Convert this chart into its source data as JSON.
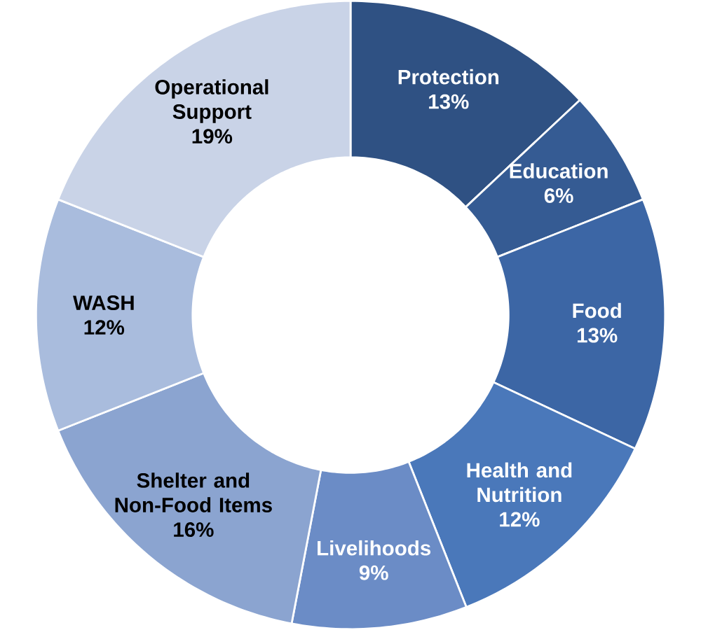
{
  "chart_data": {
    "type": "donut",
    "categories": [
      "Protection",
      "Education",
      "Food",
      "Health and Nutrition",
      "Livelihoods",
      "Shelter and Non-Food Items",
      "WASH",
      "Operational Support"
    ],
    "values": [
      13,
      6,
      13,
      12,
      9,
      16,
      12,
      19
    ],
    "value_labels": [
      "13%",
      "6%",
      "13%",
      "12%",
      "9%",
      "16%",
      "12%",
      "19%"
    ],
    "colors": [
      "#2f5183",
      "#355b93",
      "#3c66a5",
      "#4a78ba",
      "#6b8cc6",
      "#8ba4d0",
      "#a9bcdd",
      "#c9d3e7"
    ]
  }
}
